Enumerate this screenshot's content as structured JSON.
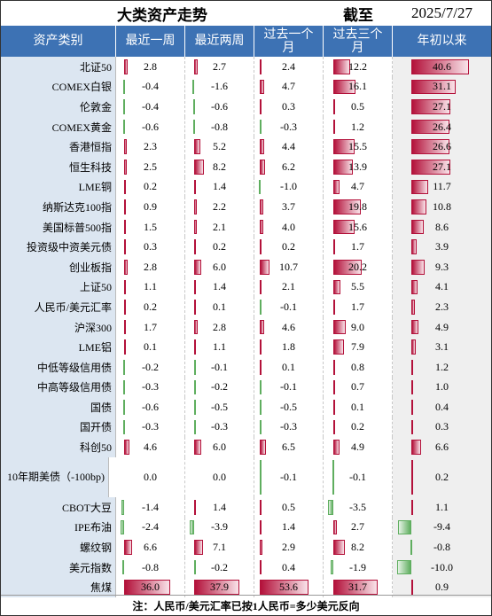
{
  "header": {
    "title": "大类资产走势",
    "as_of_label": "截至",
    "date": "2025/7/27"
  },
  "table": {
    "columns": [
      "资产类别",
      "最近一周",
      "最近两周",
      "过去一个月",
      "过去三个月",
      "年初以来"
    ],
    "rows": [
      [
        "北证50",
        "2.8",
        "2.7",
        "2.4",
        "12.2",
        "40.6"
      ],
      [
        "COMEX白银",
        "-0.4",
        "-1.6",
        "4.7",
        "16.1",
        "31.1"
      ],
      [
        "伦敦金",
        "-0.4",
        "-0.6",
        "0.3",
        "0.5",
        "27.1"
      ],
      [
        "COMEX黄金",
        "-0.6",
        "-0.8",
        "-0.3",
        "1.2",
        "26.4"
      ],
      [
        "香港恒指",
        "2.3",
        "5.2",
        "4.4",
        "15.5",
        "26.6"
      ],
      [
        "恒生科技",
        "2.5",
        "8.2",
        "6.2",
        "13.9",
        "27.1"
      ],
      [
        "LME铜",
        "0.2",
        "1.4",
        "-1.0",
        "4.7",
        "11.7"
      ],
      [
        "纳斯达克100指",
        "0.9",
        "2.2",
        "3.7",
        "19.8",
        "10.8"
      ],
      [
        "美国标普500指",
        "1.5",
        "2.1",
        "4.0",
        "15.6",
        "8.6"
      ],
      [
        "投资级中资美元债",
        "0.3",
        "0.2",
        "0.2",
        "1.7",
        "3.9"
      ],
      [
        "创业板指",
        "2.8",
        "6.0",
        "10.7",
        "20.2",
        "9.3"
      ],
      [
        "上证50",
        "1.1",
        "1.4",
        "2.1",
        "5.5",
        "4.1"
      ],
      [
        "人民币/美元汇率",
        "0.2",
        "0.1",
        "-0.1",
        "1.7",
        "2.3"
      ],
      [
        "沪深300",
        "1.7",
        "2.8",
        "4.6",
        "9.0",
        "4.9"
      ],
      [
        "LME铝",
        "0.1",
        "1.1",
        "1.8",
        "7.9",
        "3.1"
      ],
      [
        "中低等级信用债",
        "-0.2",
        "-0.1",
        "0.1",
        "0.8",
        "1.2"
      ],
      [
        "中高等级信用债",
        "-0.3",
        "-0.2",
        "-0.1",
        "0.7",
        "1.0"
      ],
      [
        "国债",
        "-0.6",
        "-0.5",
        "-0.5",
        "0.1",
        "0.4"
      ],
      [
        "国开债",
        "-0.3",
        "-0.3",
        "-0.3",
        "0.2",
        "0.3"
      ],
      [
        "科创50",
        "4.6",
        "6.0",
        "6.5",
        "4.9",
        "6.6"
      ],
      [
        "10年期美债（-100bp)",
        "0.0",
        "0.0",
        "-0.1",
        "-0.1",
        "0.2"
      ],
      [
        "CBOT大豆",
        "-1.4",
        "1.4",
        "0.5",
        "-3.5",
        "1.1"
      ],
      [
        "IPE布油",
        "-2.4",
        "-3.9",
        "1.4",
        "2.7",
        "-9.4"
      ],
      [
        "螺纹钢",
        "6.6",
        "7.1",
        "2.9",
        "8.2",
        "-0.8"
      ],
      [
        "美元指数",
        "-0.8",
        "-0.2",
        "0.4",
        "-1.9",
        "-10.0"
      ],
      [
        "焦煤",
        "36.0",
        "37.9",
        "53.6",
        "31.7",
        "0.9"
      ]
    ]
  },
  "footer": "注：人民币/美元汇率已按1人民币=多少美元反向"
}
